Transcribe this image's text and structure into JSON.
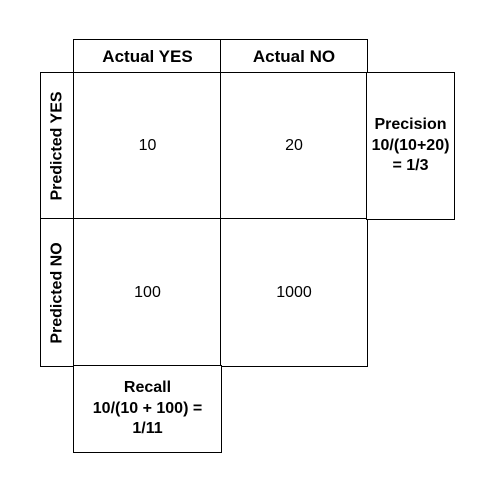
{
  "columns": {
    "actual_yes": "Actual YES",
    "actual_no": "Actual NO"
  },
  "rows": {
    "predicted_yes": "Predicted YES",
    "predicted_no": "Predicted NO"
  },
  "cells": {
    "tp": "10",
    "fp": "20",
    "fn": "100",
    "tn": "1000"
  },
  "precision": {
    "line1": "Precision",
    "line2": "10/(10+20)",
    "line3": "= 1/3"
  },
  "recall": {
    "line1": "Recall",
    "line2": "10/(10 + 100) =",
    "line3": "1/11"
  }
}
